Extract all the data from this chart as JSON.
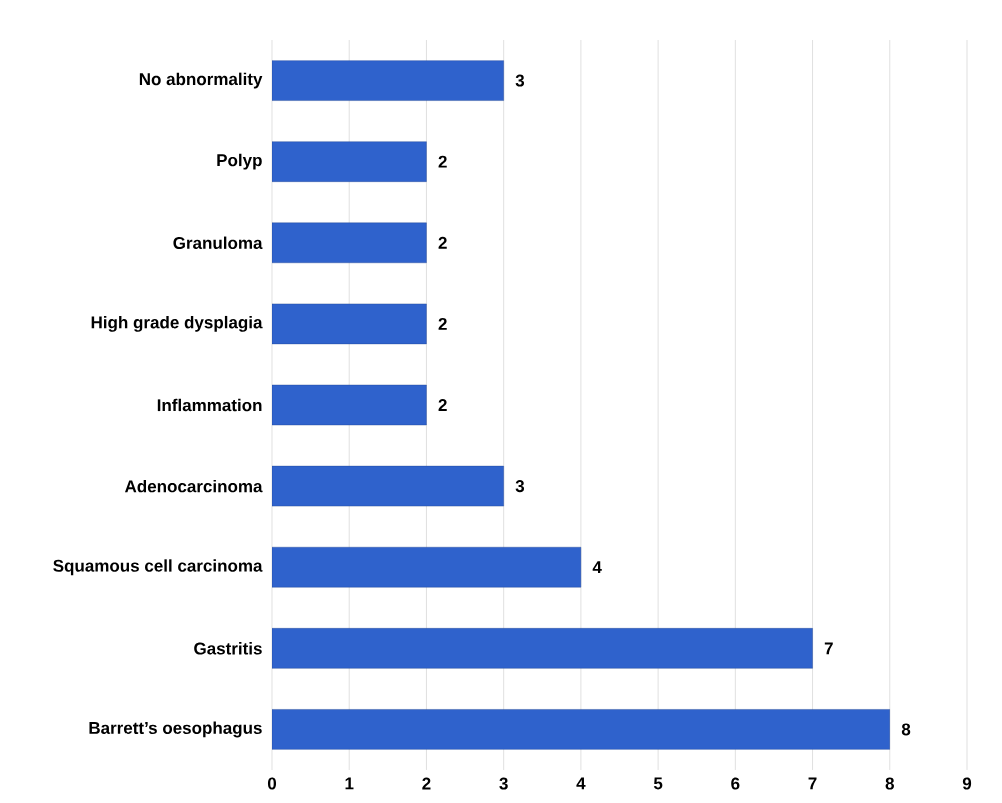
{
  "chart_data": {
    "type": "bar",
    "orientation": "horizontal",
    "categories": [
      "No abnormality",
      "Polyp",
      "Granuloma",
      "High grade dysplagia",
      "Inflammation",
      "Adenocarcinoma",
      "Squamous cell carcinoma",
      "Gastritis",
      "Barrett’s oesophagus"
    ],
    "values": [
      3,
      2,
      2,
      2,
      2,
      3,
      4,
      7,
      8
    ],
    "color": "#2f62cc",
    "xlim": [
      0,
      9
    ],
    "xticks": [
      0,
      1,
      2,
      3,
      4,
      5,
      6,
      7,
      8,
      9
    ],
    "grid": "x",
    "data_labels": true
  }
}
